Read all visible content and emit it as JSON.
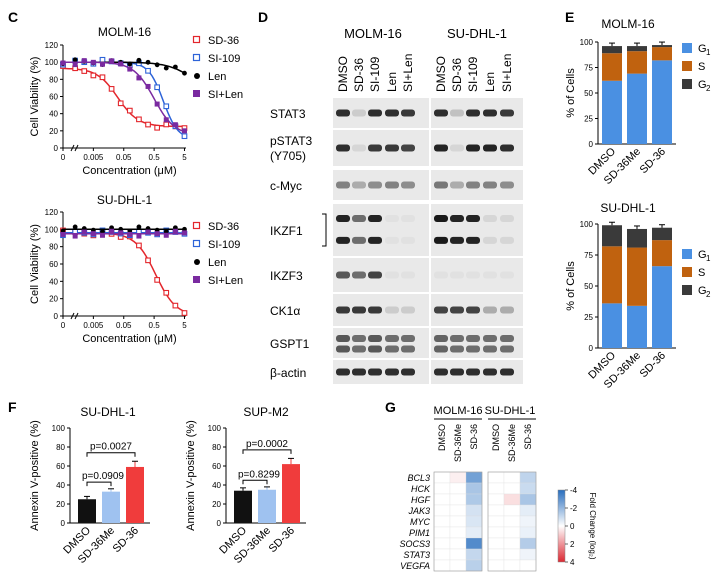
{
  "panel_c": {
    "letter": "C",
    "ylabel": "Cell Viability (%)",
    "xlabel": "Concentration (μM)",
    "yticks": [
      "0",
      "20",
      "40",
      "60",
      "80",
      "100",
      "120"
    ],
    "xticks": [
      "0",
      "0.005",
      "0.05",
      "0.5",
      "5"
    ],
    "legend": [
      {
        "label": "SD-36",
        "color": "#e3262c",
        "marker": "open-square"
      },
      {
        "label": "SI-109",
        "color": "#2d63d8",
        "marker": "open-square"
      },
      {
        "label": "Len",
        "color": "#000000",
        "marker": "circle"
      },
      {
        "label": "SI+Len",
        "color": "#7a2aa0",
        "marker": "square"
      }
    ],
    "charts": [
      {
        "title": "MOLM-16",
        "type": "scatter"
      },
      {
        "title": "SU-DHL-1",
        "type": "scatter"
      }
    ]
  },
  "panel_d": {
    "letter": "D",
    "cell_lines": [
      "MOLM-16",
      "SU-DHL-1"
    ],
    "lanes": [
      "DMSO",
      "SD-36",
      "SI-109",
      "Len",
      "SI+Len"
    ],
    "proteins": [
      {
        "label": "STAT3"
      },
      {
        "label": "pSTAT3",
        "sub": "(Y705)"
      },
      {
        "label": "c-Myc"
      },
      {
        "label": "IKZF1"
      },
      {
        "label": "IKZF3"
      },
      {
        "label": "CK1α"
      },
      {
        "label": "GSPT1"
      },
      {
        "label": "β-actin"
      }
    ]
  },
  "panel_e": {
    "letter": "E",
    "ylabel": "% of Cells",
    "yticks": [
      "0",
      "25",
      "50",
      "75",
      "100"
    ],
    "categories": [
      "DMSO",
      "SD-36Me",
      "SD-36"
    ],
    "colors": {
      "G1": "#4a90e2",
      "S": "#c0620f",
      "G2": "#3a3a3a"
    },
    "legend_items": [
      "G",
      "S",
      "G"
    ],
    "legend_subs": [
      "1",
      "",
      "2"
    ],
    "chart_data": [
      {
        "title": "MOLM-16",
        "type": "bar",
        "ylim": [
          0,
          100
        ],
        "series": [
          {
            "values": [
              62,
              69,
              82
            ]
          },
          {
            "values": [
              27,
              22,
              13
            ]
          },
          {
            "values": [
              7,
              5,
              2
            ]
          }
        ]
      },
      {
        "title": "SU-DHL-1",
        "type": "bar",
        "ylim": [
          0,
          100
        ],
        "series": [
          {
            "values": [
              36,
              34,
              66
            ]
          },
          {
            "values": [
              46,
              47,
              21
            ]
          },
          {
            "values": [
              17,
              15,
              10
            ]
          }
        ]
      }
    ]
  },
  "panel_f": {
    "letter": "F",
    "ylabel": "Annexin V-positive (%)",
    "categories": [
      "DMSO",
      "SD-36Me",
      "SD-36"
    ],
    "colors": [
      "#111111",
      "#9fc2f0",
      "#f03c3c"
    ],
    "chart_data": [
      {
        "title": "SU-DHL-1",
        "type": "bar",
        "ylim": [
          0,
          100
        ],
        "yticks": [
          "0",
          "20",
          "40",
          "60",
          "80",
          "100"
        ],
        "values": [
          25,
          33,
          59
        ],
        "pvalues": [
          "p=0.0909",
          "p=0.0027"
        ]
      },
      {
        "title": "SUP-M2",
        "type": "bar",
        "ylim": [
          0,
          100
        ],
        "yticks": [
          "0",
          "20",
          "40",
          "60",
          "80",
          "100"
        ],
        "values": [
          34,
          35,
          62
        ],
        "pvalues": [
          "p=0.8299",
          "p=0.0002"
        ]
      }
    ]
  },
  "panel_g": {
    "letter": "G",
    "cell_lines": [
      "MOLM-16",
      "SU-DHL-1"
    ],
    "columns": [
      "DMSO",
      "SD-36Me",
      "SD-36"
    ],
    "genes": [
      "BCL3",
      "HCK",
      "HGF",
      "JAK3",
      "MYC",
      "PIM1",
      "SOCS3",
      "STAT3",
      "VEGFA"
    ],
    "colorbar_label": "Fold Change (log₂)",
    "colorbar_ticks": [
      "-4",
      "-2",
      "0",
      "2",
      "4"
    ],
    "chart_data": {
      "type": "heatmap",
      "values": [
        [
          0,
          0.3,
          -2.6,
          0,
          0,
          -1.2
        ],
        [
          0,
          0,
          -1.6,
          0,
          0,
          -1.0
        ],
        [
          0,
          0,
          -1.5,
          0,
          0.6,
          -1.6
        ],
        [
          0,
          0,
          -0.8,
          0,
          0,
          -0.5
        ],
        [
          0,
          0,
          -0.7,
          0,
          0,
          -0.3
        ],
        [
          0,
          0,
          -0.5,
          0,
          0,
          -0.4
        ],
        [
          0,
          0,
          -3.2,
          0,
          0,
          -1.4
        ],
        [
          0,
          0,
          -1.1,
          0,
          0,
          -0.3
        ],
        [
          0,
          0,
          -1.3,
          0,
          0,
          0
        ]
      ]
    }
  }
}
